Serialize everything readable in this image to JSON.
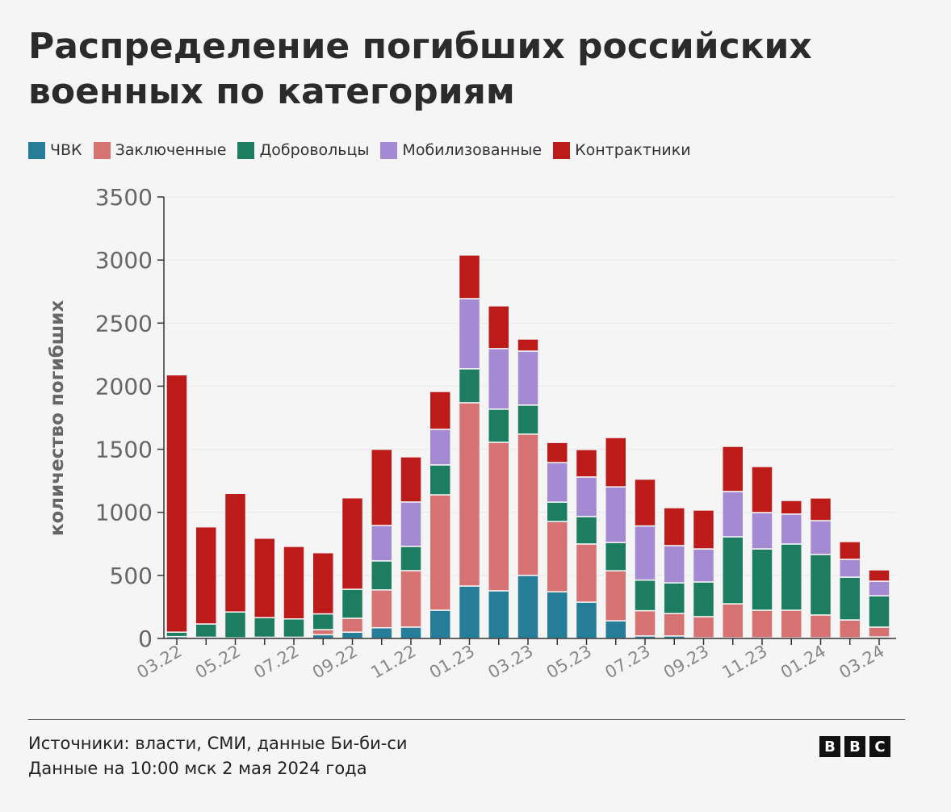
{
  "chart_data": {
    "type": "bar",
    "stacked": true,
    "title": "Распределение погибших российских военных по категориям",
    "ylabel": "количество погибших",
    "xlabel": "",
    "ylim": [
      0,
      3500
    ],
    "yticks": [
      0,
      500,
      1000,
      1500,
      2000,
      2500,
      3000,
      3500
    ],
    "grid": true,
    "legend_position": "top-left",
    "categories": [
      "03.22",
      "04.22",
      "05.22",
      "06.22",
      "07.22",
      "08.22",
      "09.22",
      "10.22",
      "11.22",
      "12.22",
      "01.23",
      "02.23",
      "03.23",
      "04.23",
      "05.23",
      "06.23",
      "07.23",
      "08.23",
      "09.23",
      "10.23",
      "11.23",
      "12.23",
      "01.24",
      "02.24",
      "03.24"
    ],
    "xtick_labels": [
      "03.22",
      "05.22",
      "07.22",
      "09.22",
      "11.22",
      "01.23",
      "03.23",
      "05.23",
      "07.23",
      "09.23",
      "11.23",
      "01.24",
      "03.24"
    ],
    "series": [
      {
        "name": "ЧВК",
        "color": "#267d98",
        "values": [
          15,
          10,
          5,
          10,
          10,
          30,
          50,
          85,
          90,
          224,
          416,
          378,
          500,
          370,
          288,
          140,
          20,
          20,
          5,
          5,
          5,
          5,
          5,
          5,
          12
        ]
      },
      {
        "name": "Заключенные",
        "color": "#d67271",
        "values": [
          0,
          0,
          0,
          0,
          0,
          40,
          110,
          300,
          448,
          915,
          1453,
          1177,
          1120,
          557,
          461,
          397,
          200,
          178,
          168,
          270,
          219,
          219,
          181,
          142,
          78
        ]
      },
      {
        "name": "Добровольцы",
        "color": "#1c7d60",
        "values": [
          35,
          105,
          205,
          155,
          145,
          125,
          230,
          230,
          192,
          237,
          269,
          263,
          230,
          154,
          217,
          224,
          243,
          243,
          275,
          531,
          486,
          525,
          480,
          339,
          249
        ]
      },
      {
        "name": "Мобилизованные",
        "color": "#a48ad2",
        "values": [
          0,
          0,
          0,
          0,
          0,
          0,
          0,
          280,
          352,
          282,
          556,
          480,
          428,
          313,
          314,
          441,
          429,
          295,
          262,
          359,
          288,
          237,
          268,
          141,
          115
        ]
      },
      {
        "name": "Контрактники",
        "color": "#bd1a1a",
        "values": [
          2040,
          770,
          940,
          630,
          575,
          485,
          725,
          605,
          358,
          300,
          346,
          339,
          96,
          160,
          218,
          391,
          371,
          301,
          308,
          358,
          365,
          108,
          180,
          141,
          90
        ]
      }
    ]
  },
  "footer": {
    "sources": "Источники: власти, СМИ, данные Би-би-си",
    "date": "Данные на 10:00 мск 2 мая 2024 года",
    "logo": [
      "B",
      "B",
      "C"
    ]
  }
}
